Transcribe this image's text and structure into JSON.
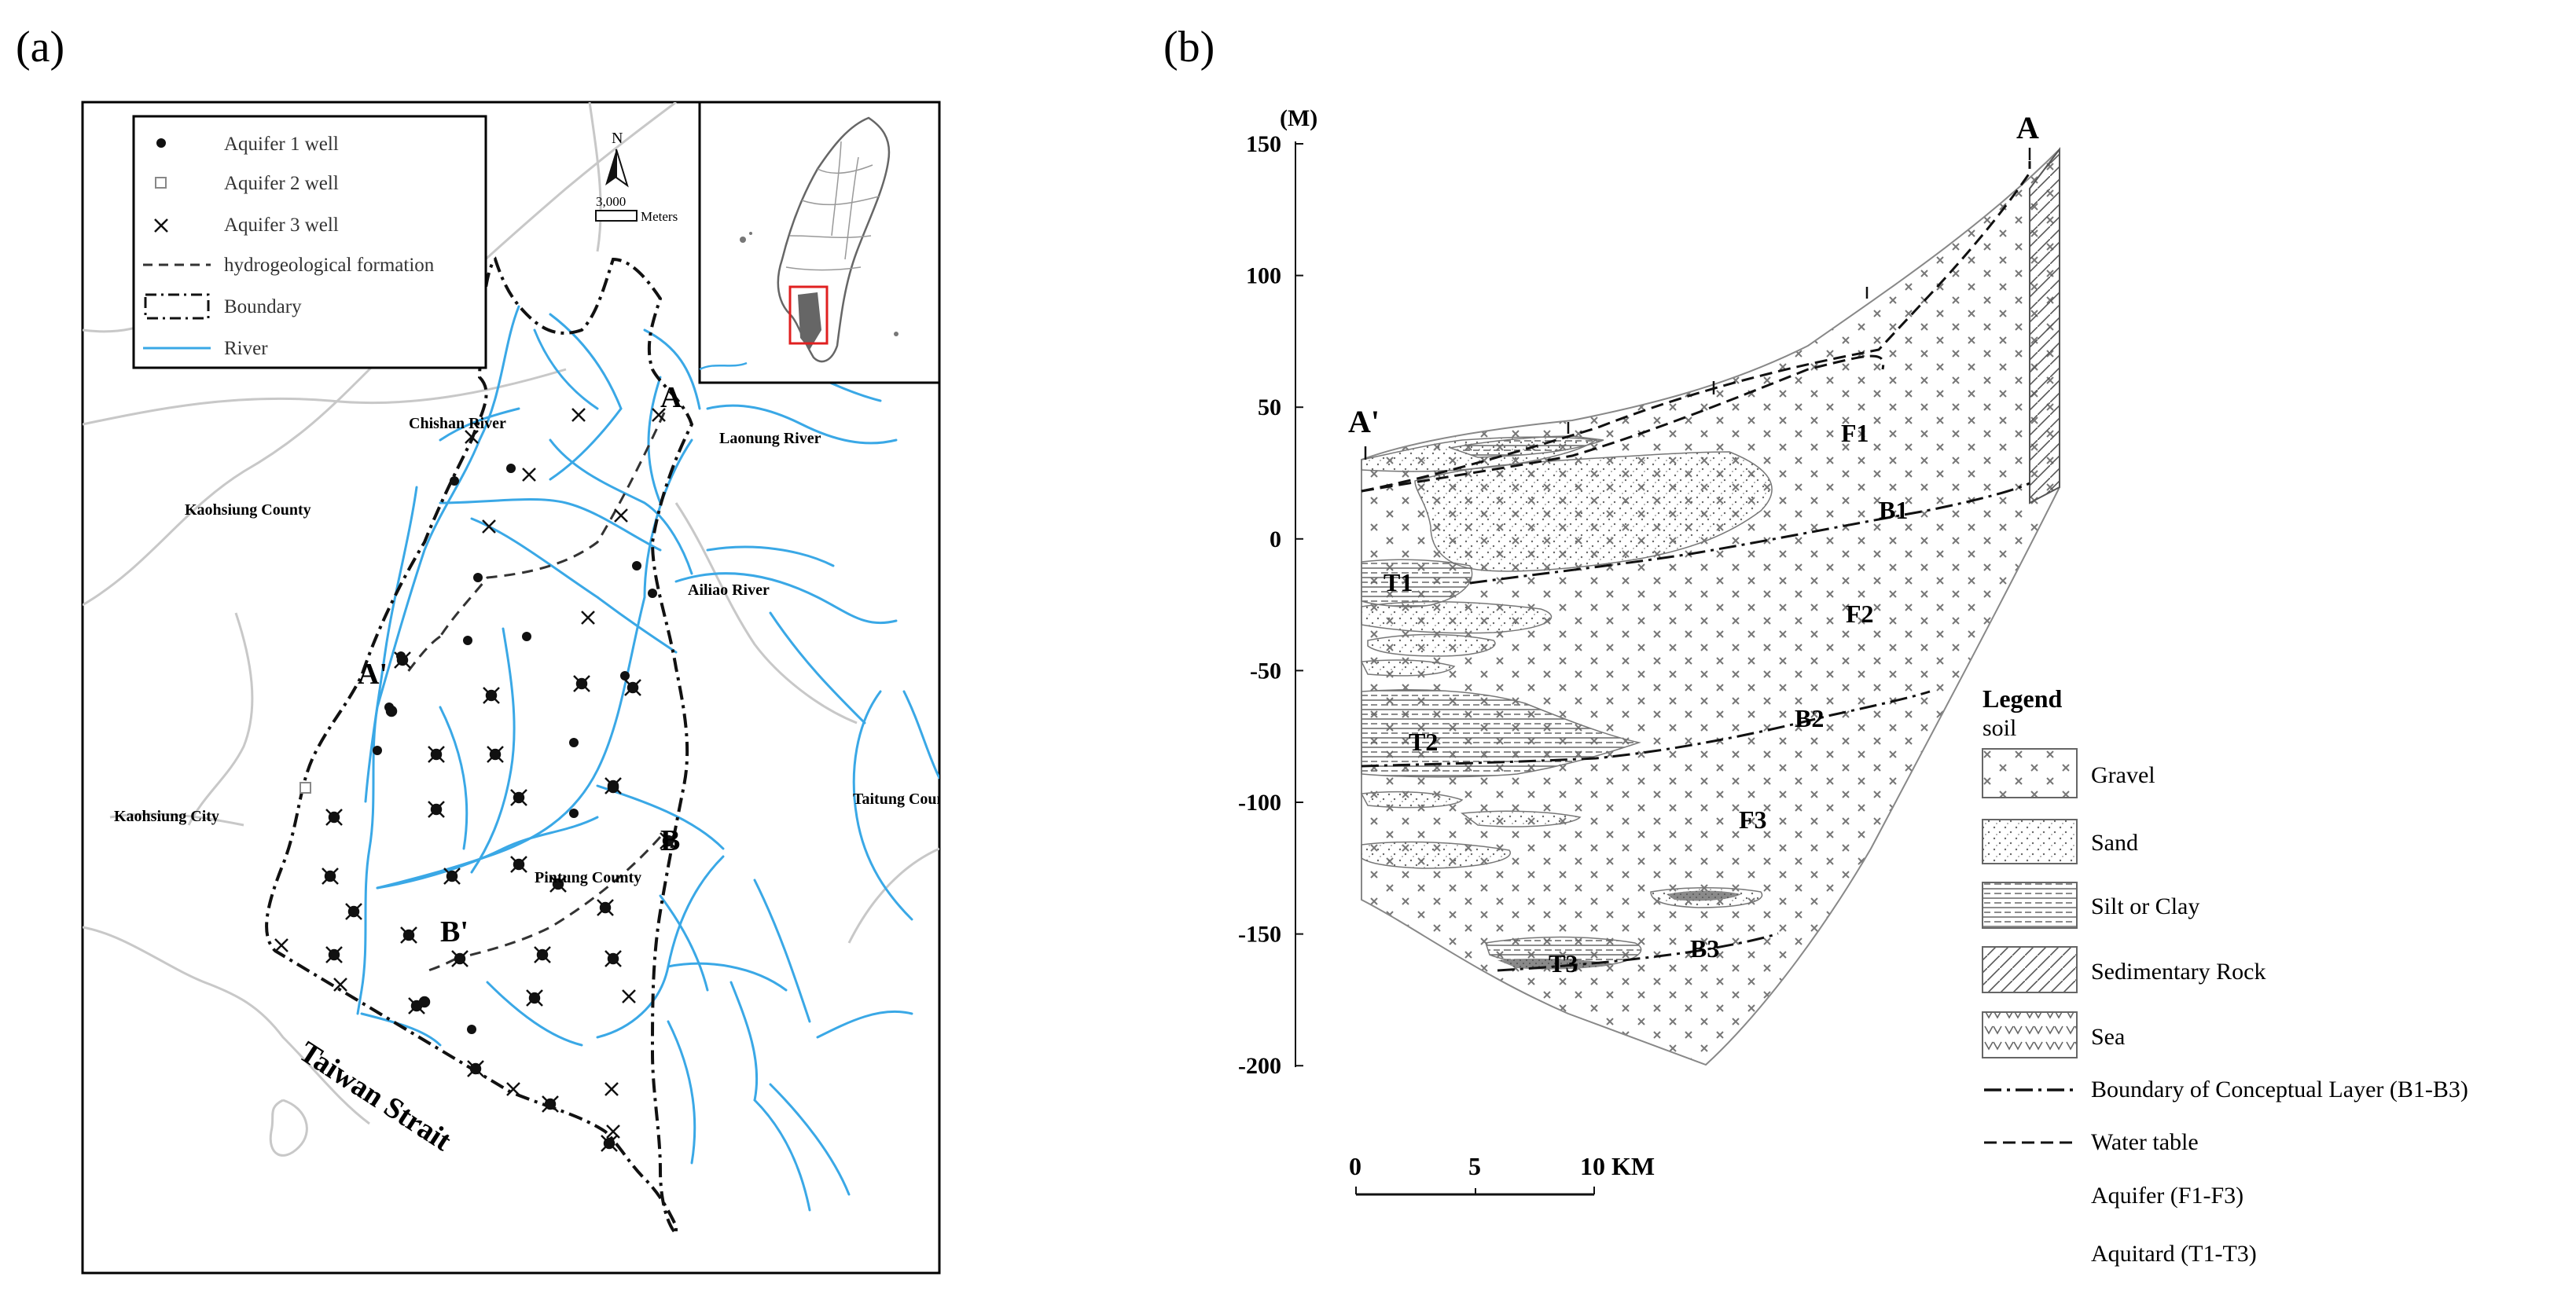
{
  "panel_a": {
    "label": "(a)",
    "legend": {
      "aquifer1": "Aquifer 1 well",
      "aquifer2": "Aquifer 2 well",
      "aquifer3": "Aquifer 3 well",
      "formation": "hydrogeological formation",
      "boundary": "Boundary",
      "river": "River"
    },
    "north": "N",
    "scale_value": "3,000",
    "scale_unit": "Meters",
    "places": {
      "chishan": "Chishan River",
      "laonung": "Laonung River",
      "kaohsiung_county": "Kaohsiung County",
      "ailiao": "Ailiao River",
      "kaohsiung_city": "Kaohsiung City",
      "taitung": "Taitung County",
      "pintung": "Pintung County",
      "strait": "Taiwan Strait"
    },
    "section_labels": {
      "a": "A",
      "a_prime": "A'",
      "b": "B",
      "b_prime": "B'"
    },
    "colors": {
      "river": "#3aa8e6",
      "inset_box": "#e02020",
      "road": "#c8c8c8"
    }
  },
  "panel_b": {
    "label": "(b)",
    "axis_unit": "(M)",
    "y_ticks": [
      "150",
      "100",
      "50",
      "0",
      "-50",
      "-100",
      "-150",
      "-200"
    ],
    "end_a": "A",
    "end_a_prime": "A'",
    "units": {
      "f1": "F1",
      "f2": "F2",
      "f3": "F3",
      "b1": "B1",
      "b2": "B2",
      "b3": "B3",
      "t1": "T1",
      "t2": "T2",
      "t3": "T3"
    },
    "scale": {
      "s0": "0",
      "s5": "5",
      "s10": "10 KM"
    },
    "legend": {
      "title": "Legend",
      "subtitle": "soil",
      "gravel": "Gravel",
      "sand": "Sand",
      "silt": "Silt or Clay",
      "rock": "Sedimentary Rock",
      "sea": "Sea",
      "boundary": "Boundary of Conceptual Layer (B1-B3)",
      "water": "Water table",
      "aquifer": "Aquifer (F1-F3)",
      "aquitard": "Aquitard (T1-T3)"
    }
  }
}
